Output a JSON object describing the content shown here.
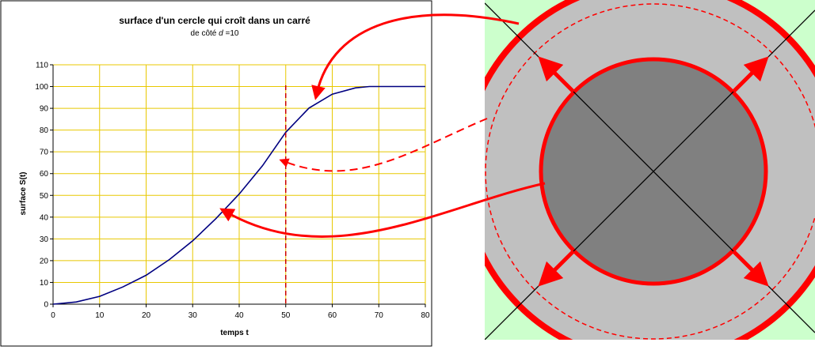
{
  "chart_data": {
    "type": "line",
    "title": "surface d'un cercle qui croît dans un carré",
    "subtitle_prefix": "de côté ",
    "subtitle_var": "d",
    "subtitle_suffix": " =10",
    "xlabel": "temps t",
    "ylabel": "surface S(t)",
    "xlim": [
      0,
      80
    ],
    "ylim": [
      0,
      110
    ],
    "x_ticks": [
      0,
      10,
      20,
      30,
      40,
      50,
      60,
      70,
      80
    ],
    "y_ticks": [
      0,
      10,
      20,
      30,
      40,
      50,
      60,
      70,
      80,
      90,
      100,
      110
    ],
    "grid": true,
    "legend": "none",
    "series": [
      {
        "x": [
          0,
          5,
          10,
          15,
          20,
          25,
          30,
          35,
          40,
          45,
          50,
          55,
          60,
          65,
          68,
          70,
          75,
          80
        ],
        "y": [
          0,
          1,
          3.6,
          7.9,
          13.3,
          20.5,
          29.1,
          39.3,
          50.6,
          63.6,
          79.0,
          90.1,
          96.5,
          99.4,
          100,
          100,
          100,
          100
        ]
      }
    ],
    "marker_line_x": 50,
    "colors": {
      "line": "#000080",
      "grid": "#e8c800",
      "marker": "#cc0000",
      "arrow": "#ff0000",
      "square_bg": "#ccffcc",
      "outer_disc": "#c0c0c0",
      "inner_disc": "#808080"
    }
  }
}
